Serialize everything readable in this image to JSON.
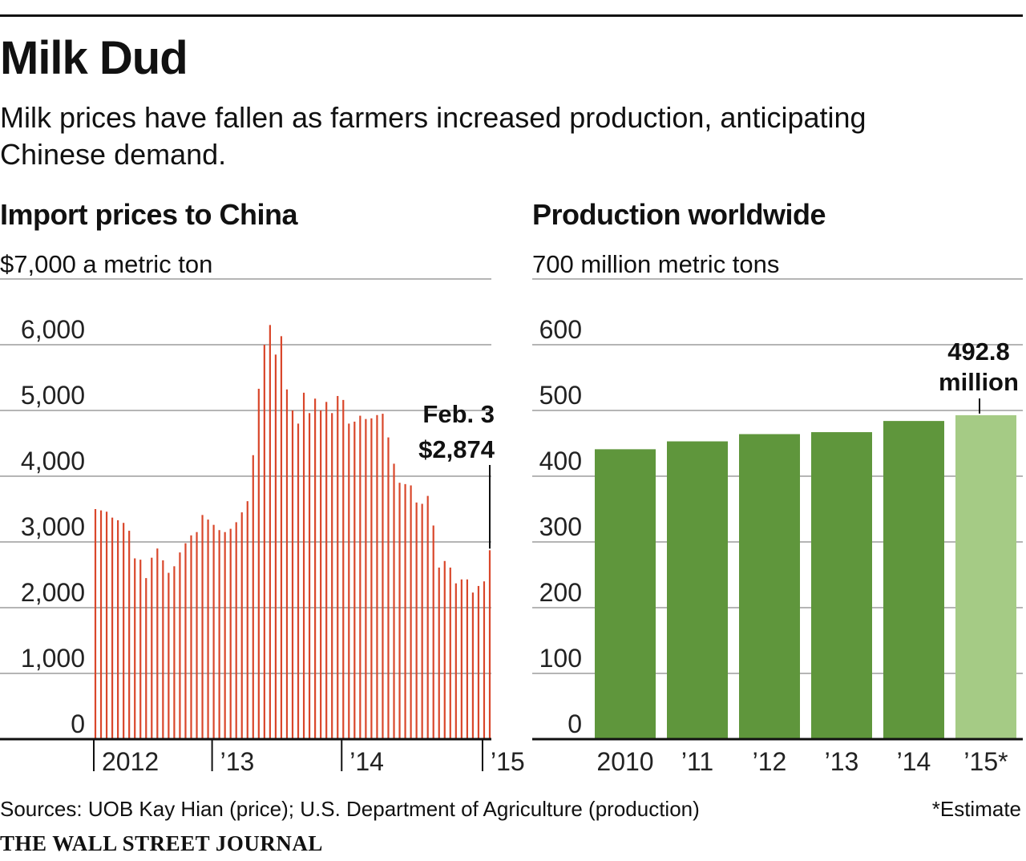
{
  "header": {
    "title": "Milk Dud",
    "subtitle": "Milk prices have fallen as farmers increased production, anticipating Chinese demand."
  },
  "left_panel": {
    "title": "Import prices to China",
    "unit_label": "$7,000 a metric ton"
  },
  "right_panel": {
    "title": "Production worldwide",
    "unit_label": "700 million metric tons"
  },
  "footer": {
    "source": "Sources: UOB Kay Hian (price); U.S. Department of Agriculture (production)",
    "note": "*Estimate",
    "brand": "THE WALL STREET JOURNAL"
  },
  "colors": {
    "price_bars": "#d9472b",
    "production_bars": "#5f963c",
    "estimate_bar": "#a5cb85",
    "gridlines": "#b5b5b5",
    "axis": "#111111"
  },
  "chart_data": [
    {
      "type": "bar",
      "title": "Import prices to China",
      "ylabel": "$7,000 a metric ton",
      "ylim": [
        0,
        7000
      ],
      "yticks": [
        "6,000",
        "5,000",
        "4,000",
        "3,000",
        "2,000",
        "1,000",
        "0"
      ],
      "ytick_values": [
        6000,
        5000,
        4000,
        3000,
        2000,
        1000,
        0
      ],
      "xticks": [
        "2012",
        "’13",
        "’14",
        "’15"
      ],
      "xtick_positions": [
        0,
        21,
        44,
        69
      ],
      "grid": true,
      "series": [
        {
          "values": [
            3500,
            3480,
            3460,
            3370,
            3330,
            3290,
            3170,
            2750,
            2730,
            2450,
            2760,
            2900,
            2720,
            2530,
            2630,
            2840,
            2980,
            3100,
            3150,
            3410,
            3340,
            3260,
            3180,
            3150,
            3200,
            3300,
            3450,
            3620,
            4320,
            5330,
            6000,
            6300,
            5850,
            6130,
            5320,
            5000,
            4800,
            5270,
            4960,
            5180,
            5000,
            5130,
            4960,
            5220,
            5160,
            4800,
            4830,
            4920,
            4870,
            4880,
            4930,
            4950,
            4590,
            4190,
            3900,
            3880,
            3860,
            3600,
            3580,
            3700,
            3250,
            2610,
            2710,
            2610,
            2370,
            2430,
            2430,
            2230,
            2330,
            2400,
            2874
          ]
        }
      ],
      "annotation": {
        "date": "Feb. 3",
        "value_label": "$2,874",
        "value": 2874
      }
    },
    {
      "type": "bar",
      "title": "Production worldwide",
      "ylabel": "700 million metric tons",
      "ylim": [
        0,
        700
      ],
      "yticks": [
        "600",
        "500",
        "400",
        "300",
        "200",
        "100",
        "0"
      ],
      "ytick_values": [
        600,
        500,
        400,
        300,
        200,
        100,
        0
      ],
      "categories": [
        "2010",
        "’11",
        "’12",
        "’13",
        "’14",
        "’15*"
      ],
      "grid": true,
      "series": [
        {
          "values": [
            441,
            453,
            464,
            467,
            484,
            492.8
          ]
        }
      ],
      "estimate_index": 5,
      "annotation": {
        "value_label": "492.8",
        "unit_label": "million",
        "value": 492.8
      }
    }
  ]
}
